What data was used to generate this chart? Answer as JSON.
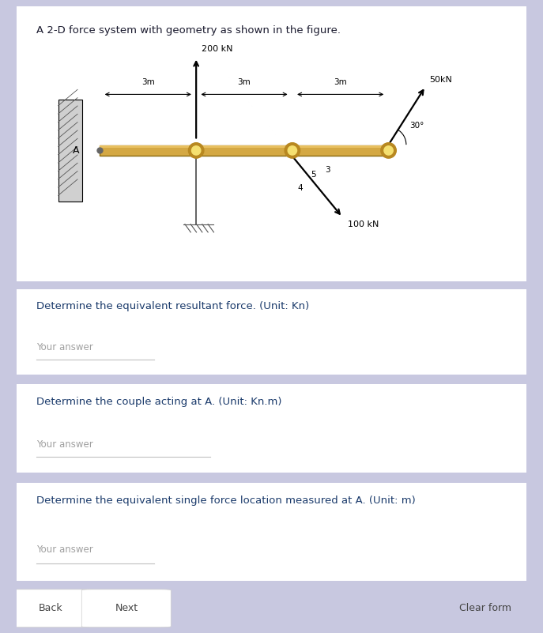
{
  "bg_color": "#c8c8e0",
  "card_color": "#ffffff",
  "title_text": "A 2-D force system with geometry as shown in the figure.",
  "title_color": "#1a1a2e",
  "title_fontsize": 10.5,
  "beam_color": "#d4a843",
  "beam_highlight": "#e8c060",
  "beam_edge": "#8a6a10",
  "wall_color": "#d0d0d0",
  "q1_label": "Determine the equivalent resultant force. (Unit: Kn)",
  "q2_label": "Determine the couple acting at A. (Unit: Kn.m)",
  "q3_label": "Determine the equivalent single force location measured at A. (Unit: m)",
  "answer_placeholder": "Your answer",
  "btn_back": "Back",
  "btn_next": "Next",
  "btn_clear": "Clear form",
  "question_color": "#1a3a6b",
  "placeholder_color": "#a0a0a0",
  "underline_color": "#c0c0c0"
}
